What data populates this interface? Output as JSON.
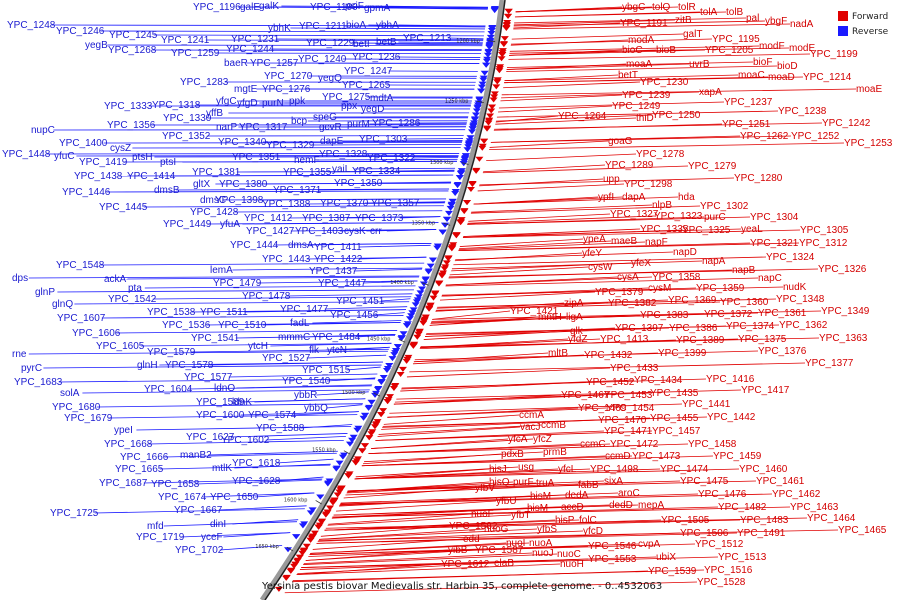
{
  "caption": "Yersinia pestis biovar Medievalis str. Harbin 35, complete genome. - 0..4532063",
  "legend": {
    "forward_label": "Forward",
    "reverse_label": "Reverse",
    "forward_color": "#e00000",
    "reverse_color": "#1a1aff"
  },
  "scale_ticks": [
    "1200 kbp",
    "1250 kbp",
    "1300 kbp",
    "1350 kbp",
    "1400 kbp",
    "1450 kbp",
    "1500 kbp",
    "1550 kbp",
    "1600 kbp",
    "1650 kbp"
  ],
  "forward_labels": [
    [
      "ybgC",
      622,
      10
    ],
    [
      "tolQ",
      652,
      10
    ],
    [
      "tolR",
      678,
      10
    ],
    [
      "tolA",
      700,
      15
    ],
    [
      "tolB",
      726,
      15
    ],
    [
      "pal",
      746,
      21
    ],
    [
      "ybgF",
      765,
      24
    ],
    [
      "nadA",
      790,
      27
    ],
    [
      "YPC_1191",
      620,
      26
    ],
    [
      "zitB",
      675,
      23
    ],
    [
      "galT",
      683,
      37
    ],
    [
      "YPC_1195",
      712,
      42
    ],
    [
      "YPC_1199",
      810,
      57
    ],
    [
      "modA",
      628,
      43
    ],
    [
      "bioC",
      622,
      53
    ],
    [
      "bioB",
      656,
      53
    ],
    [
      "YPC_1205",
      705,
      53
    ],
    [
      "modF",
      759,
      49
    ],
    [
      "modE",
      789,
      51
    ],
    [
      "bioF",
      753,
      65
    ],
    [
      "moaA",
      626,
      67
    ],
    [
      "uvrB",
      689,
      67
    ],
    [
      "bioD",
      777,
      69
    ],
    [
      "betT",
      618,
      78
    ],
    [
      "moaC",
      738,
      78
    ],
    [
      "moaD",
      768,
      80
    ],
    [
      "YPC_1214",
      803,
      80
    ],
    [
      "moaE",
      856,
      92
    ],
    [
      "YPC_1230",
      640,
      85
    ],
    [
      "xapA",
      699,
      95
    ],
    [
      "YPC_1239",
      622,
      98
    ],
    [
      "YPC_1237",
      724,
      105
    ],
    [
      "YPC_1238",
      778,
      114
    ],
    [
      "YPC_1249",
      612,
      109
    ],
    [
      "YPC_1264",
      558,
      119
    ],
    [
      "thiD",
      636,
      121
    ],
    [
      "YPC_1250",
      652,
      118
    ],
    [
      "YPC_1251",
      722,
      127
    ],
    [
      "YPC_1242",
      822,
      126
    ],
    [
      "YPC_1262",
      740,
      139
    ],
    [
      "YPC_1252",
      791,
      139
    ],
    [
      "YPC_1253",
      844,
      146
    ],
    [
      "goaG",
      608,
      144
    ],
    [
      "YPC_1278",
      636,
      157
    ],
    [
      "YPC_1279",
      688,
      169
    ],
    [
      "YPC_1289",
      605,
      168
    ],
    [
      "YPC_1280",
      734,
      181
    ],
    [
      "upp",
      603,
      182
    ],
    [
      "YPC_1298",
      624,
      187
    ],
    [
      "hda",
      678,
      200
    ],
    [
      "ypfI",
      598,
      200
    ],
    [
      "dapA",
      622,
      200
    ],
    [
      "nlpB",
      652,
      208
    ],
    [
      "YPC_1302",
      700,
      209
    ],
    [
      "YPC_1327",
      610,
      217
    ],
    [
      "YPC_1323",
      654,
      219
    ],
    [
      "purC",
      704,
      220
    ],
    [
      "YPC_1304",
      750,
      220
    ],
    [
      "YPC_1335",
      640,
      232
    ],
    [
      "YPC_1325",
      682,
      233
    ],
    [
      "yeaL",
      741,
      232
    ],
    [
      "YPC_1305",
      800,
      233
    ],
    [
      "ypeA",
      583,
      242
    ],
    [
      "maeB",
      611,
      244
    ],
    [
      "napF",
      645,
      245
    ],
    [
      "YPC_1321",
      750,
      246
    ],
    [
      "YPC_1312",
      799,
      246
    ],
    [
      "yfeY",
      582,
      256
    ],
    [
      "napD",
      673,
      255
    ],
    [
      "YPC_1324",
      766,
      260
    ],
    [
      "yfeX",
      631,
      266
    ],
    [
      "napA",
      702,
      264
    ],
    [
      "cysW",
      588,
      270
    ],
    [
      "napB",
      732,
      273
    ],
    [
      "YPC_1326",
      818,
      272
    ],
    [
      "cysA",
      617,
      280
    ],
    [
      "YPC_1358",
      652,
      280
    ],
    [
      "napC",
      758,
      281
    ],
    [
      "cysM",
      648,
      291
    ],
    [
      "YPC_1359",
      696,
      291
    ],
    [
      "nudK",
      783,
      290
    ],
    [
      "YPC_1379",
      595,
      295
    ],
    [
      "YPC_1369",
      668,
      303
    ],
    [
      "YPC_1360",
      720,
      305
    ],
    [
      "YPC_1348",
      776,
      302
    ],
    [
      "zipA",
      564,
      306
    ],
    [
      "YPC_1382",
      608,
      306
    ],
    [
      "YPC_1361",
      758,
      316
    ],
    [
      "YPC_1349",
      821,
      314
    ],
    [
      "YPC_1421",
      510,
      314
    ],
    [
      "mntH",
      538,
      320
    ],
    [
      "ligA",
      566,
      320
    ],
    [
      "YPC_1383",
      640,
      318
    ],
    [
      "YPC_1372",
      704,
      317
    ],
    [
      "YPC_1374",
      726,
      329
    ],
    [
      "YPC_1362",
      779,
      328
    ],
    [
      "glk",
      570,
      334
    ],
    [
      "YPC_1397",
      615,
      331
    ],
    [
      "YPC_1386",
      669,
      331
    ],
    [
      "YPC_1389",
      676,
      343
    ],
    [
      "YPC_1375",
      738,
      342
    ],
    [
      "YPC_1363",
      819,
      341
    ],
    [
      "yfdZ",
      568,
      342
    ],
    [
      "YPC_1413",
      600,
      342
    ],
    [
      "YPC_1399",
      658,
      356
    ],
    [
      "YPC_1376",
      758,
      354
    ],
    [
      "mltB",
      548,
      356
    ],
    [
      "YPC_1432",
      584,
      358
    ],
    [
      "YPC_1377",
      805,
      366
    ],
    [
      "YPC_1433",
      610,
      371
    ],
    [
      "YPC_1434",
      634,
      383
    ],
    [
      "YPC_1416",
      706,
      382
    ],
    [
      "YPC_1417",
      741,
      393
    ],
    [
      "YPC_1452",
      586,
      385
    ],
    [
      "YPC_1435",
      650,
      396
    ],
    [
      "YPC_1441",
      682,
      407
    ],
    [
      "YPC_1467",
      561,
      398
    ],
    [
      "YPC_1453",
      604,
      398
    ],
    [
      "YPC_1454",
      606,
      411
    ],
    [
      "YPC_1442",
      707,
      420
    ],
    [
      "YPC_1469",
      578,
      411
    ],
    [
      "YPC_1470",
      598,
      423
    ],
    [
      "YPC_1455",
      650,
      421
    ],
    [
      "ccmA",
      519,
      418
    ],
    [
      "vacJ",
      520,
      430
    ],
    [
      "ccmB",
      541,
      428
    ],
    [
      "YPC_1471",
      604,
      434
    ],
    [
      "YPC_1457",
      652,
      434
    ],
    [
      "yfcA",
      508,
      442
    ],
    [
      "yfcZ",
      533,
      442
    ],
    [
      "ccmC",
      580,
      447
    ],
    [
      "YPC_1472",
      610,
      447
    ],
    [
      "YPC_1458",
      688,
      447
    ],
    [
      "pdxB",
      501,
      457
    ],
    [
      "prmB",
      543,
      455
    ],
    [
      "ccmD",
      605,
      459
    ],
    [
      "YPC_1473",
      632,
      459
    ],
    [
      "YPC_1459",
      713,
      459
    ],
    [
      "hisJ",
      489,
      472
    ],
    [
      "usg",
      518,
      470
    ],
    [
      "yfcL",
      558,
      472
    ],
    [
      "YPC_1498",
      590,
      472
    ],
    [
      "YPC_1474",
      660,
      472
    ],
    [
      "YPC_1460",
      739,
      472
    ],
    [
      "hisQ",
      489,
      485
    ],
    [
      "purF",
      513,
      485
    ],
    [
      "truA",
      536,
      486
    ],
    [
      "fabB",
      578,
      488
    ],
    [
      "sixA",
      604,
      484
    ],
    [
      "YPC_1475",
      680,
      484
    ],
    [
      "YPC_1461",
      756,
      484
    ],
    [
      "yfbV",
      475,
      491
    ],
    [
      "hisM",
      530,
      499
    ],
    [
      "dedA",
      565,
      498
    ],
    [
      "aroC",
      618,
      496
    ],
    [
      "YPC_1476",
      698,
      497
    ],
    [
      "YPC_1462",
      772,
      497
    ],
    [
      "yfbU",
      496,
      504
    ],
    [
      "hisM",
      527,
      511
    ],
    [
      "accD",
      561,
      510
    ],
    [
      "dedD",
      609,
      508
    ],
    [
      "mepA",
      638,
      508
    ],
    [
      "YPC_1482",
      718,
      510
    ],
    [
      "YPC_1463",
      790,
      510
    ],
    [
      "nuoF",
      471,
      517
    ],
    [
      "yfbT",
      511,
      518
    ],
    [
      "hisP",
      555,
      523
    ],
    [
      "folC",
      579,
      523
    ],
    [
      "YPC_1505",
      661,
      523
    ],
    [
      "YPC_1483",
      740,
      523
    ],
    [
      "YPC_1464",
      807,
      521
    ],
    [
      "YPC_1582",
      449,
      529
    ],
    [
      "nuoG",
      484,
      532
    ],
    [
      "yfbS",
      537,
      532
    ],
    [
      "yfcD",
      583,
      534
    ],
    [
      "YPC_1506",
      680,
      536
    ],
    [
      "YPC_1491",
      737,
      536
    ],
    [
      "YPC_1465",
      838,
      533
    ],
    [
      "edd",
      463,
      542
    ],
    [
      "nuoI",
      506,
      546
    ],
    [
      "nuoA",
      529,
      546
    ],
    [
      "YPC_1546",
      588,
      549
    ],
    [
      "cvpA",
      638,
      547
    ],
    [
      "YPC_1512",
      695,
      547
    ],
    [
      "yibB",
      448,
      553
    ],
    [
      "YPC_1587",
      475,
      553
    ],
    [
      "nuoJ",
      532,
      556
    ],
    [
      "nuoC",
      557,
      557
    ],
    [
      "ubiX",
      656,
      560
    ],
    [
      "YPC_1513",
      718,
      560
    ],
    [
      "elaB",
      494,
      566
    ],
    [
      "nuoH",
      560,
      567
    ],
    [
      "YPC_1553",
      588,
      562
    ],
    [
      "YPC_1539",
      648,
      574
    ],
    [
      "YPC_1516",
      704,
      573
    ],
    [
      "YPC_1612",
      441,
      567
    ],
    [
      "YPC_1528",
      697,
      585
    ]
  ],
  "reverse_labels": [
    [
      "YPC_1196",
      193,
      10
    ],
    [
      "galE",
      240,
      10
    ],
    [
      "galK",
      259,
      9
    ],
    [
      "YPC_1190",
      310,
      10
    ],
    [
      "psiF",
      345,
      9
    ],
    [
      "gpmA",
      364,
      11
    ],
    [
      "YPC_1248",
      7,
      28
    ],
    [
      "YPC_1246",
      56,
      34
    ],
    [
      "ybhK",
      268,
      31
    ],
    [
      "YPC_1211",
      299,
      29
    ],
    [
      "bioA",
      346,
      28
    ],
    [
      "ybhA",
      376,
      28
    ],
    [
      "YPC_1245",
      109,
      38
    ],
    [
      "YPC_1241",
      161,
      43
    ],
    [
      "YPC_1231",
      231,
      42
    ],
    [
      "YPC_1229",
      306,
      46
    ],
    [
      "betI",
      353,
      47
    ],
    [
      "betB",
      376,
      45
    ],
    [
      "YPC_1213",
      403,
      41
    ],
    [
      "yegB",
      85,
      48
    ],
    [
      "YPC_1268",
      108,
      53
    ],
    [
      "YPC_1259",
      171,
      56
    ],
    [
      "YPC_1244",
      226,
      52
    ],
    [
      "YPC_1240",
      298,
      62
    ],
    [
      "YPC_1236",
      352,
      60
    ],
    [
      "baeR",
      224,
      66
    ],
    [
      "YPC_1257",
      250,
      66
    ],
    [
      "YPC_1247",
      344,
      74
    ],
    [
      "YPC_1283",
      180,
      85
    ],
    [
      "YPC_1270",
      264,
      79
    ],
    [
      "yegQ",
      318,
      81
    ],
    [
      "YPC_1265",
      342,
      88
    ],
    [
      "mgtE",
      234,
      92
    ],
    [
      "YPC_1276",
      262,
      92
    ],
    [
      "YPC_1275",
      322,
      100
    ],
    [
      "mdtA",
      370,
      101
    ],
    [
      "yfgC",
      216,
      104
    ],
    [
      "ppk",
      289,
      104
    ],
    [
      "ppx",
      341,
      109
    ],
    [
      "yegD",
      361,
      112
    ],
    [
      "YPC_1333",
      104,
      109
    ],
    [
      "YPC_1318",
      152,
      108
    ],
    [
      "yfgD",
      237,
      106
    ],
    [
      "purN",
      262,
      106
    ],
    [
      "YPC_1330",
      163,
      121
    ],
    [
      "yffB",
      206,
      116
    ],
    [
      "bcp",
      291,
      124
    ],
    [
      "speG",
      313,
      120
    ],
    [
      "YPC_1356",
      107,
      128
    ],
    [
      "narP",
      216,
      130
    ],
    [
      "YPC_1317",
      239,
      130
    ],
    [
      "gcvR",
      319,
      130
    ],
    [
      "purM",
      347,
      127
    ],
    [
      "YPC_1286",
      372,
      126
    ],
    [
      "nupC",
      31,
      133
    ],
    [
      "YPC_1352",
      162,
      139
    ],
    [
      "YPC_1340",
      218,
      145
    ],
    [
      "YPC_1329",
      266,
      148
    ],
    [
      "dapE",
      320,
      144
    ],
    [
      "YPC_1303",
      359,
      142
    ],
    [
      "YPC_1400",
      59,
      146
    ],
    [
      "cysZ",
      110,
      151
    ],
    [
      "ptsH",
      132,
      160
    ],
    [
      "YPC_1351",
      232,
      160
    ],
    [
      "hemF",
      294,
      163
    ],
    [
      "YPC_1328",
      319,
      157
    ],
    [
      "YPC_1322",
      367,
      161
    ],
    [
      "YPC_1448",
      2,
      157
    ],
    [
      "yfuC",
      54,
      159
    ],
    [
      "YPC_1419",
      79,
      165
    ],
    [
      "ptsI",
      160,
      165
    ],
    [
      "YPC_1355",
      283,
      175
    ],
    [
      "yaiL",
      332,
      172
    ],
    [
      "YPC_1334",
      352,
      174
    ],
    [
      "YPC_1438",
      74,
      179
    ],
    [
      "YPC_1414",
      127,
      179
    ],
    [
      "YPC_1381",
      192,
      175
    ],
    [
      "YPC_1350",
      334,
      186
    ],
    [
      "gltX",
      193,
      187
    ],
    [
      "YPC_1380",
      219,
      187
    ],
    [
      "YPC_1371",
      273,
      193
    ],
    [
      "YPC_1446",
      62,
      195
    ],
    [
      "dmsB",
      154,
      193
    ],
    [
      "dmsC",
      200,
      203
    ],
    [
      "YPC_1398",
      215,
      203
    ],
    [
      "YPC_1388",
      262,
      207
    ],
    [
      "YPC_1370",
      320,
      206
    ],
    [
      "YPC_1357",
      371,
      206
    ],
    [
      "YPC_1445",
      99,
      210
    ],
    [
      "YPC_1428",
      190,
      215
    ],
    [
      "YPC_1412",
      244,
      221
    ],
    [
      "YPC_1387",
      302,
      221
    ],
    [
      "YPC_1373",
      355,
      221
    ],
    [
      "YPC_1449",
      163,
      227
    ],
    [
      "yfuA",
      220,
      227
    ],
    [
      "YPC_1427",
      246,
      234
    ],
    [
      "YPC_1403",
      295,
      234
    ],
    [
      "cysK",
      344,
      234
    ],
    [
      "crr",
      370,
      234
    ],
    [
      "YPC_1444",
      230,
      248
    ],
    [
      "dmsA",
      288,
      248
    ],
    [
      "YPC_1411",
      314,
      250
    ],
    [
      "YPC_1443",
      262,
      262
    ],
    [
      "YPC_1422",
      314,
      262
    ],
    [
      "YPC_1548",
      56,
      268
    ],
    [
      "lemA",
      210,
      273
    ],
    [
      "YPC_1437",
      309,
      274
    ],
    [
      "dps",
      12,
      281
    ],
    [
      "ackA",
      104,
      282
    ],
    [
      "YPC_1479",
      213,
      286
    ],
    [
      "YPC_1447",
      318,
      286
    ],
    [
      "glnP",
      35,
      295
    ],
    [
      "pta",
      128,
      291
    ],
    [
      "YPC_1478",
      242,
      299
    ],
    [
      "YPC_1451",
      336,
      304
    ],
    [
      "glnQ",
      52,
      307
    ],
    [
      "YPC_1542",
      108,
      302
    ],
    [
      "YPC_1538",
      147,
      315
    ],
    [
      "YPC_1511",
      200,
      315
    ],
    [
      "YPC_1477",
      280,
      312
    ],
    [
      "YPC_1456",
      330,
      318
    ],
    [
      "YPC_1607",
      57,
      321
    ],
    [
      "YPC_1536",
      162,
      328
    ],
    [
      "YPC_1510",
      218,
      328
    ],
    [
      "fadL",
      290,
      326
    ],
    [
      "YPC_1484",
      312,
      340
    ],
    [
      "YPC_1606",
      72,
      336
    ],
    [
      "YPC_1541",
      191,
      341
    ],
    [
      "ytcH",
      248,
      349
    ],
    [
      "mmmC",
      278,
      340
    ],
    [
      "flk",
      309,
      353
    ],
    [
      "ytcN",
      327,
      353
    ],
    [
      "YPC_1605",
      96,
      349
    ],
    [
      "YPC_1579",
      147,
      355
    ],
    [
      "YPC_1527",
      262,
      361
    ],
    [
      "rne",
      12,
      357
    ],
    [
      "glnH",
      137,
      368
    ],
    [
      "YPC_1578",
      165,
      368
    ],
    [
      "YPC_1515",
      302,
      373
    ],
    [
      "pyrC",
      21,
      371
    ],
    [
      "YPC_1577",
      184,
      380
    ],
    [
      "YPC_1540",
      282,
      384
    ],
    [
      "YPC_1683",
      14,
      385
    ],
    [
      "YPC_1604",
      144,
      392
    ],
    [
      "ldnO",
      214,
      391
    ],
    [
      "YPC_1589",
      196,
      405
    ],
    [
      "ldnK",
      232,
      405
    ],
    [
      "ybbR",
      294,
      398
    ],
    [
      "solA",
      60,
      396
    ],
    [
      "YPC_1600",
      196,
      418
    ],
    [
      "YPC_1574",
      248,
      418
    ],
    [
      "ybbQ",
      304,
      411
    ],
    [
      "YPC_1680",
      52,
      410
    ],
    [
      "YPC_1588",
      256,
      431
    ],
    [
      "YPC_1679",
      64,
      421
    ],
    [
      "YPC_1627",
      186,
      440
    ],
    [
      "YPC_1602",
      221,
      443
    ],
    [
      "ypeI",
      114,
      433
    ],
    [
      "YPC_1668",
      104,
      447
    ],
    [
      "manB2",
      180,
      458
    ],
    [
      "YPC_1666",
      120,
      460
    ],
    [
      "YPC_1618",
      232,
      466
    ],
    [
      "YPC_1665",
      115,
      472
    ],
    [
      "mtlK",
      212,
      471
    ],
    [
      "YPC_1687",
      99,
      486
    ],
    [
      "YPC_1658",
      151,
      487
    ],
    [
      "YPC_1628",
      232,
      484
    ],
    [
      "YPC_1674",
      158,
      500
    ],
    [
      "YPC_1650",
      210,
      500
    ],
    [
      "YPC_1667",
      174,
      513
    ],
    [
      "YPC_1725",
      50,
      516
    ],
    [
      "mfd",
      147,
      529
    ],
    [
      "dinI",
      210,
      527
    ],
    [
      "YPC_1719",
      136,
      540
    ],
    [
      "yceF",
      201,
      540
    ],
    [
      "YPC_1702",
      175,
      553
    ]
  ]
}
